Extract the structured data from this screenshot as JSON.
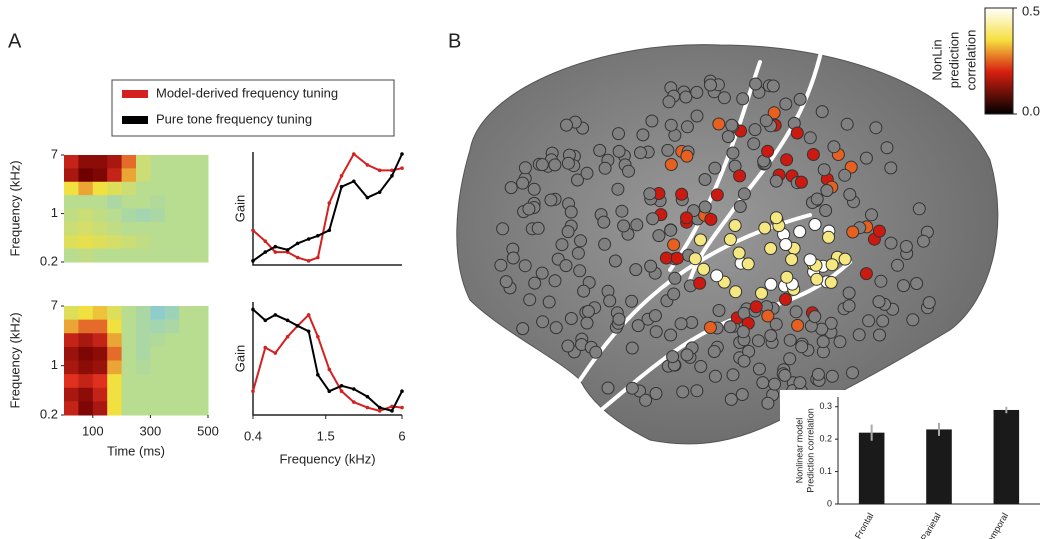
{
  "panels": [
    {
      "label": "A"
    },
    {
      "label": "B"
    }
  ],
  "legend": [
    {
      "name": "Model-derived frequency tuning",
      "color": "#d42020"
    },
    {
      "name": "Pure tone frequency tuning",
      "color": "#000000"
    }
  ],
  "colorbar": {
    "title": [
      "NonLin",
      "prediction",
      "correlation"
    ],
    "ticks": [
      {
        "value": 0.5,
        "label": "0.5"
      },
      {
        "value": 0,
        "label": "0.0"
      }
    ]
  },
  "chart_data": [
    {
      "type": "heatmap",
      "ylabel": "Frequency (kHz)",
      "xlim": [
        0,
        500
      ],
      "ylim": [
        0.2,
        7
      ],
      "log_y": true,
      "yticks": [
        0.2,
        1,
        7
      ],
      "zlim": [
        -1,
        1
      ],
      "z": [
        [
          0.7,
          0.9,
          0.9,
          0.8,
          0.5,
          0.1,
          0,
          0,
          0,
          0
        ],
        [
          0.8,
          1,
          0.95,
          0.7,
          0.4,
          0.1,
          0,
          0,
          0,
          0
        ],
        [
          0.3,
          0.4,
          0.3,
          0.2,
          0.1,
          0,
          0,
          0,
          0,
          0
        ],
        [
          0,
          0,
          0,
          -0.1,
          0,
          0,
          -0.05,
          0,
          0,
          0
        ],
        [
          0.05,
          0.1,
          0.05,
          0,
          -0.1,
          -0.15,
          -0.1,
          0,
          0,
          0
        ],
        [
          0.1,
          0.15,
          0.1,
          0.05,
          0,
          0,
          0,
          0,
          0,
          0
        ],
        [
          0.2,
          0.25,
          0.2,
          0.15,
          0.1,
          0.05,
          0,
          0,
          0,
          0
        ],
        [
          0,
          0.05,
          0,
          0,
          0,
          0,
          0,
          0,
          0,
          0
        ]
      ]
    },
    {
      "type": "line",
      "ylabel": "Gain",
      "xlim": [
        0.4,
        6
      ],
      "ylim": [
        0,
        1
      ],
      "log_x": true,
      "x": [
        0.4,
        0.5,
        0.6,
        0.75,
        0.9,
        1.1,
        1.3,
        1.6,
        2,
        2.5,
        3.2,
        4,
        5,
        6
      ],
      "series": [
        {
          "name": "Model-derived frequency tuning",
          "color": "#d42020",
          "values": [
            0.3,
            0.2,
            0.1,
            0.1,
            0.05,
            0.02,
            0.05,
            0.55,
            0.8,
            1.0,
            0.9,
            0.85,
            0.85,
            0.87
          ]
        },
        {
          "name": "Pure tone frequency tuning",
          "color": "#000000",
          "values": [
            0.02,
            0.1,
            0.15,
            0.12,
            0.18,
            0.22,
            0.25,
            0.3,
            0.7,
            0.75,
            0.6,
            0.65,
            0.8,
            1.0
          ]
        }
      ]
    },
    {
      "type": "heatmap",
      "ylabel": "Frequency (kHz)",
      "xlabel": "Time (ms)",
      "xlim": [
        0,
        500
      ],
      "ylim": [
        0.2,
        7
      ],
      "log_y": true,
      "xticks": [
        100,
        300,
        500
      ],
      "yticks": [
        0.2,
        1,
        7
      ],
      "zlim": [
        -1,
        1
      ],
      "z": [
        [
          0.2,
          0.3,
          0.35,
          0.2,
          0,
          -0.1,
          -0.3,
          -0.2,
          0,
          0
        ],
        [
          0.4,
          0.5,
          0.5,
          0.3,
          0,
          -0.1,
          -0.15,
          -0.1,
          0,
          0
        ],
        [
          0.7,
          0.8,
          0.7,
          0.4,
          0,
          -0.1,
          -0.05,
          0,
          0,
          0
        ],
        [
          0.85,
          0.95,
          0.9,
          0.5,
          0,
          -0.1,
          0,
          0,
          0,
          0
        ],
        [
          0.8,
          0.9,
          0.85,
          0.4,
          0,
          -0.05,
          0,
          0,
          0,
          0
        ],
        [
          0.6,
          0.7,
          0.6,
          0.3,
          0,
          0,
          0,
          0,
          0,
          0
        ],
        [
          0.8,
          0.9,
          0.7,
          0.3,
          0,
          0,
          0,
          0,
          0,
          0
        ],
        [
          0.7,
          0.95,
          0.8,
          0.3,
          0,
          0,
          0,
          0,
          0,
          0
        ]
      ]
    },
    {
      "type": "line",
      "ylabel": "Gain",
      "xlabel": "Frequency (kHz)",
      "xlim": [
        0.4,
        6
      ],
      "ylim": [
        0,
        1
      ],
      "log_x": true,
      "xticks": [
        0.4,
        1.5,
        6
      ],
      "x": [
        0.4,
        0.5,
        0.6,
        0.75,
        0.9,
        1.1,
        1.3,
        1.6,
        2,
        2.5,
        3.2,
        4,
        5,
        6
      ],
      "series": [
        {
          "name": "Model-derived frequency tuning",
          "color": "#d42020",
          "values": [
            0.2,
            0.6,
            0.55,
            0.7,
            0.8,
            0.9,
            0.7,
            0.4,
            0.2,
            0.1,
            0.05,
            0.02,
            0.06,
            0.05
          ]
        },
        {
          "name": "Pure tone frequency tuning",
          "color": "#000000",
          "values": [
            0.95,
            0.85,
            0.9,
            0.85,
            0.8,
            0.75,
            0.35,
            0.2,
            0.25,
            0.22,
            0.15,
            0.05,
            0.02,
            0.2
          ]
        }
      ]
    },
    {
      "type": "bar",
      "ylabel": [
        "Nonlinear model",
        "Prediction correlation"
      ],
      "categories": [
        "Frontal",
        "Parietal",
        "Temporal"
      ],
      "values": [
        0.22,
        0.23,
        0.29
      ],
      "errors": [
        0.025,
        0.02,
        0.01
      ],
      "color": "#1a1a1a",
      "ylim": [
        0,
        0.33
      ],
      "yticks": [
        0,
        0.1,
        0.2,
        0.3
      ]
    }
  ]
}
